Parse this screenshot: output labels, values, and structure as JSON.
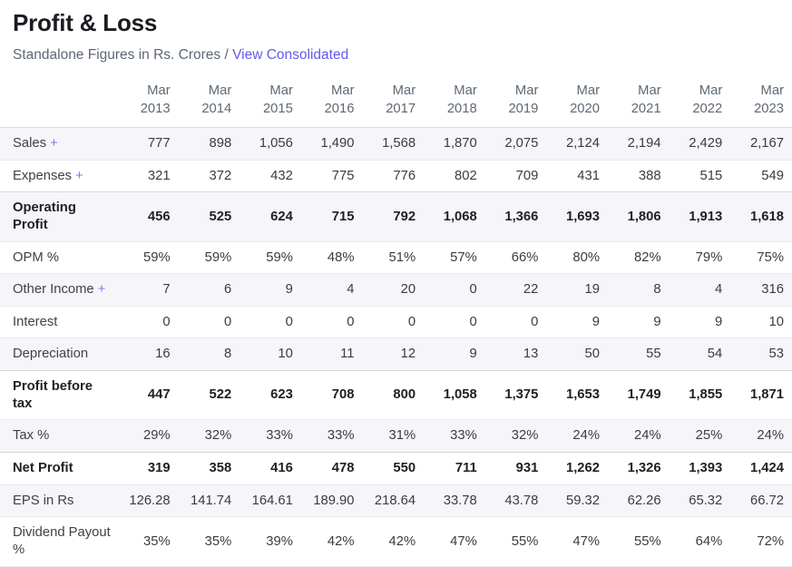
{
  "header": {
    "title": "Profit & Loss",
    "subtitle": "Standalone Figures in Rs. Crores /",
    "link_label": "View Consolidated"
  },
  "table": {
    "expand_symbol": "+",
    "columns": [
      "Mar 2013",
      "Mar 2014",
      "Mar 2015",
      "Mar 2016",
      "Mar 2017",
      "Mar 2018",
      "Mar 2019",
      "Mar 2020",
      "Mar 2021",
      "Mar 2022",
      "Mar 2023"
    ],
    "rows": [
      {
        "label": "Sales",
        "expandable": true,
        "bold": false,
        "values": [
          "777",
          "898",
          "1,056",
          "1,490",
          "1,568",
          "1,870",
          "2,075",
          "2,124",
          "2,194",
          "2,429",
          "2,167"
        ]
      },
      {
        "label": "Expenses",
        "expandable": true,
        "bold": false,
        "values": [
          "321",
          "372",
          "432",
          "775",
          "776",
          "802",
          "709",
          "431",
          "388",
          "515",
          "549"
        ]
      },
      {
        "label": "Operating Profit",
        "expandable": false,
        "bold": true,
        "values": [
          "456",
          "525",
          "624",
          "715",
          "792",
          "1,068",
          "1,366",
          "1,693",
          "1,806",
          "1,913",
          "1,618"
        ]
      },
      {
        "label": "OPM %",
        "expandable": false,
        "bold": false,
        "values": [
          "59%",
          "59%",
          "59%",
          "48%",
          "51%",
          "57%",
          "66%",
          "80%",
          "82%",
          "79%",
          "75%"
        ]
      },
      {
        "label": "Other Income",
        "expandable": true,
        "bold": false,
        "values": [
          "7",
          "6",
          "9",
          "4",
          "20",
          "0",
          "22",
          "19",
          "8",
          "4",
          "316"
        ]
      },
      {
        "label": "Interest",
        "expandable": false,
        "bold": false,
        "values": [
          "0",
          "0",
          "0",
          "0",
          "0",
          "0",
          "0",
          "9",
          "9",
          "9",
          "10"
        ]
      },
      {
        "label": "Depreciation",
        "expandable": false,
        "bold": false,
        "values": [
          "16",
          "8",
          "10",
          "11",
          "12",
          "9",
          "13",
          "50",
          "55",
          "54",
          "53"
        ]
      },
      {
        "label": "Profit before tax",
        "expandable": false,
        "bold": true,
        "values": [
          "447",
          "522",
          "623",
          "708",
          "800",
          "1,058",
          "1,375",
          "1,653",
          "1,749",
          "1,855",
          "1,871"
        ]
      },
      {
        "label": "Tax %",
        "expandable": false,
        "bold": false,
        "values": [
          "29%",
          "32%",
          "33%",
          "33%",
          "31%",
          "33%",
          "32%",
          "24%",
          "24%",
          "25%",
          "24%"
        ]
      },
      {
        "label": "Net Profit",
        "expandable": false,
        "bold": true,
        "values": [
          "319",
          "358",
          "416",
          "478",
          "550",
          "711",
          "931",
          "1,262",
          "1,326",
          "1,393",
          "1,424"
        ]
      },
      {
        "label": "EPS in Rs",
        "expandable": false,
        "bold": false,
        "values": [
          "126.28",
          "141.74",
          "164.61",
          "189.90",
          "218.64",
          "33.78",
          "43.78",
          "59.32",
          "62.26",
          "65.32",
          "66.72"
        ]
      },
      {
        "label": "Dividend Payout %",
        "expandable": false,
        "bold": false,
        "values": [
          "35%",
          "35%",
          "39%",
          "42%",
          "42%",
          "47%",
          "55%",
          "47%",
          "55%",
          "64%",
          "72%"
        ]
      }
    ]
  },
  "colors": {
    "accent_link": "#6458ee",
    "expand_plus": "#7f76f2",
    "stripe_bg": "#f5f5fa",
    "strong_text": "#1f1f26",
    "body_text": "#3b3b43",
    "muted_text": "#5e6974"
  }
}
